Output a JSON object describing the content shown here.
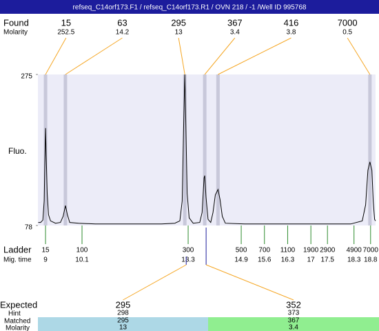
{
  "title": "refseq_C14orf173.F1 / refseq_C14orf173.R1 / OVN 218 / -1 /Well ID 995768",
  "chart_data": {
    "type": "electropherogram",
    "ylabel": "Fluo.",
    "ylim": [
      78,
      275
    ],
    "yticks": [
      78,
      275
    ],
    "xlim": [
      8.77,
      18.95
    ],
    "plot_color": "#ececf8",
    "trace_color": "#000000",
    "found": {
      "label": "Found",
      "molarity_label": "Molarity",
      "band_color": "#c8c8da",
      "connector_color": "#f5a623",
      "peaks": [
        {
          "size": 15,
          "molarity": 252.5,
          "time": 9.0
        },
        {
          "size": 63,
          "molarity": 14.2,
          "time": 9.6
        },
        {
          "size": 295,
          "molarity": 13,
          "time": 13.2
        },
        {
          "size": 367,
          "molarity": 3.4,
          "time": 13.8
        },
        {
          "size": 416,
          "molarity": 3.8,
          "time": 14.2
        },
        {
          "size": 7000,
          "molarity": 0.5,
          "time": 18.78
        }
      ]
    },
    "ladder": {
      "label": "Ladder",
      "time_label": "Mig. time",
      "color": "#2e8b2e",
      "sizes": [
        15,
        100,
        300,
        500,
        700,
        1100,
        1900,
        2900,
        4900,
        7000
      ],
      "times": [
        9,
        10.1,
        13.3,
        14.9,
        15.6,
        16.3,
        17,
        17.5,
        18.3,
        18.8
      ]
    },
    "expected": {
      "label": "Expected",
      "hint_label": "Hint",
      "matched_label": "Matched",
      "molarity_label": "Molarity",
      "items": [
        {
          "size": 295,
          "hint": 298,
          "matched": 295,
          "molarity": 13,
          "color": "#add8e6"
        },
        {
          "size": 352,
          "hint": 373,
          "matched": 367,
          "molarity": 3.4,
          "color": "#90ee90"
        }
      ]
    },
    "trace": {
      "x": [
        8.78,
        8.85,
        8.92,
        8.96,
        8.98,
        9.0,
        9.02,
        9.05,
        9.09,
        9.15,
        9.3,
        9.45,
        9.53,
        9.6,
        9.66,
        9.73,
        10.0,
        10.5,
        11.0,
        11.5,
        12.0,
        12.5,
        12.9,
        13.05,
        13.12,
        13.16,
        13.2,
        13.23,
        13.27,
        13.33,
        13.45,
        13.65,
        13.72,
        13.78,
        13.8,
        13.84,
        13.9,
        13.98,
        14.05,
        14.12,
        14.2,
        14.26,
        14.33,
        14.42,
        15,
        16,
        17,
        17.5,
        18.2,
        18.55,
        18.65,
        18.72,
        18.78,
        18.84,
        18.88,
        18.92,
        18.95
      ],
      "y": [
        82,
        82,
        85,
        110,
        160,
        205,
        170,
        120,
        92,
        84,
        81,
        82,
        90,
        104,
        92,
        82,
        81,
        80,
        80,
        80,
        80,
        80,
        81,
        84,
        110,
        200,
        275,
        210,
        120,
        88,
        81,
        82,
        95,
        140,
        143,
        115,
        86,
        82,
        95,
        118,
        125,
        112,
        90,
        81,
        80,
        80,
        80,
        80,
        80,
        84,
        105,
        150,
        161,
        150,
        110,
        86,
        84
      ]
    }
  }
}
